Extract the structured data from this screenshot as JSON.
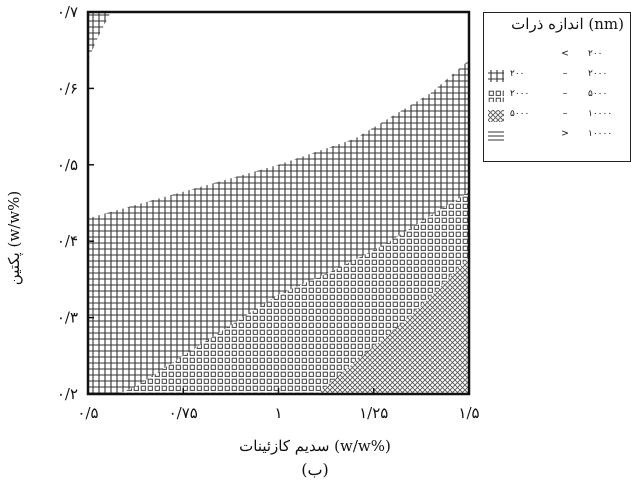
{
  "chart_data": {
    "type": "heatmap",
    "title": "",
    "xlabel": "(%w/w) سدیم کازئینات",
    "ylabel": "(%w/w) پکتین",
    "panel_label": "(ب)",
    "xlim": [
      0.5,
      1.5
    ],
    "ylim": [
      0.2,
      0.7
    ],
    "x_ticks": [
      0.5,
      0.75,
      1,
      1.25,
      1.5
    ],
    "x_tick_labels": [
      "۰/۵",
      "۰/۷۵",
      "۱",
      "۱/۲۵",
      "۱/۵"
    ],
    "y_ticks": [
      0.2,
      0.3,
      0.4,
      0.5,
      0.6,
      0.7
    ],
    "y_tick_labels": [
      "۰/۲",
      "۰/۳",
      "۰/۴",
      "۰/۵",
      "۰/۶",
      "۰/۷"
    ],
    "legend": {
      "title": "اندازه ذرات (nm)",
      "position": "outside-right",
      "entries": [
        {
          "pattern": "blank",
          "lower": "",
          "operator": "<",
          "upper": "۲۰۰"
        },
        {
          "pattern": "grid",
          "lower": "۲۰۰",
          "operator": "–",
          "upper": "۲۰۰۰"
        },
        {
          "pattern": "dots",
          "lower": "۲۰۰۰",
          "operator": "–",
          "upper": "۵۰۰۰"
        },
        {
          "pattern": "crosshatch",
          "lower": "۵۰۰۰",
          "operator": "–",
          "upper": "۱۰۰۰۰"
        },
        {
          "pattern": "lines",
          "lower": "",
          "operator": ">",
          "upper": "۱۰۰۰۰"
        }
      ]
    },
    "regions": [
      {
        "pattern": "grid",
        "range_nm": "200-2000",
        "boundary": [
          [
            0.5,
            0.637
          ],
          [
            0.53,
            0.671
          ],
          [
            0.56,
            0.7
          ],
          [
            0.58,
            0.7
          ],
          [
            0.5,
            0.7
          ]
        ]
      },
      {
        "pattern": "grid",
        "range_nm": "200-2000",
        "boundary": [
          [
            0.5,
            0.2
          ],
          [
            0.5,
            0.43
          ],
          [
            0.78,
            0.469
          ],
          [
            1.0,
            0.5
          ],
          [
            1.2,
            0.534
          ],
          [
            1.4,
            0.594
          ],
          [
            1.5,
            0.637
          ],
          [
            1.5,
            0.2
          ]
        ]
      },
      {
        "pattern": "dots",
        "range_nm": "2000-5000",
        "boundary": [
          [
            0.58,
            0.2
          ],
          [
            0.63,
            0.211
          ],
          [
            0.78,
            0.26
          ],
          [
            1.0,
            0.33
          ],
          [
            1.15,
            0.363
          ],
          [
            1.28,
            0.396
          ],
          [
            1.42,
            0.44
          ],
          [
            1.5,
            0.464
          ],
          [
            1.5,
            0.2
          ]
        ]
      },
      {
        "pattern": "crosshatch",
        "range_nm": "5000-10000",
        "boundary": [
          [
            1.1,
            0.2
          ],
          [
            1.22,
            0.25
          ],
          [
            1.33,
            0.295
          ],
          [
            1.42,
            0.338
          ],
          [
            1.5,
            0.38
          ],
          [
            1.5,
            0.2
          ]
        ]
      }
    ]
  }
}
